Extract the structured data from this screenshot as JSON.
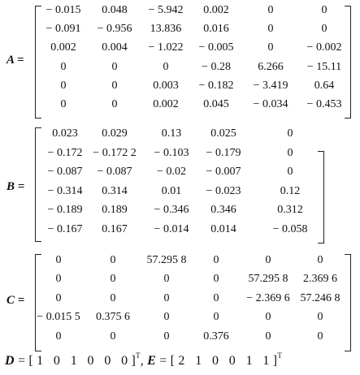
{
  "matrices": {
    "A": {
      "label": "A =",
      "rows": [
        [
          "− 0.015",
          "0.048",
          "− 5.942",
          "0.002",
          "0",
          "0"
        ],
        [
          "− 0.091",
          "− 0.956",
          "13.836",
          "0.016",
          "0",
          "0"
        ],
        [
          "0.002",
          "0.004",
          "− 1.022",
          "− 0.005",
          "0",
          "− 0.002"
        ],
        [
          "0",
          "0",
          "0",
          "− 0.28",
          "6.266",
          "− 15.11"
        ],
        [
          "0",
          "0",
          "0.003",
          "− 0.182",
          "− 3.419",
          "0.64"
        ],
        [
          "0",
          "0",
          "0.002",
          "0.045",
          "− 0.034",
          "− 0.453"
        ]
      ]
    },
    "B": {
      "label": "B =",
      "rows": [
        [
          "0.023",
          "0.029",
          "0.13",
          "0.025",
          "0"
        ],
        [
          "− 0.172",
          "− 0.172 2",
          "− 0.103",
          "− 0.179",
          "0"
        ],
        [
          "− 0.087",
          "− 0.087",
          "− 0.02",
          "− 0.007",
          "0"
        ],
        [
          "− 0.314",
          "0.314",
          "0.01",
          "− 0.023",
          "0.12"
        ],
        [
          "− 0.189",
          "0.189",
          "− 0.346",
          "0.346",
          "0.312"
        ],
        [
          "− 0.167",
          "0.167",
          "− 0.014",
          "0.014",
          "− 0.058"
        ]
      ]
    },
    "C": {
      "label": "C =",
      "rows": [
        [
          "0",
          "0",
          "57.295 8",
          "0",
          "0",
          "0"
        ],
        [
          "0",
          "0",
          "0",
          "0",
          "57.295 8",
          "2.369 6"
        ],
        [
          "0",
          "0",
          "0",
          "0",
          "− 2.369 6",
          "57.246 8"
        ],
        [
          "− 0.015 5",
          "0.375 6",
          "0",
          "0",
          "0",
          "0"
        ],
        [
          "0",
          "0",
          "0",
          "0.376",
          "0",
          "0"
        ]
      ]
    }
  },
  "footer": {
    "d_symbol": "D",
    "d_values": "= [ 1   0   1   0   0   0 ]",
    "d_sup": "T",
    "separator": ",",
    "e_symbol": "E",
    "e_values": "= [ 2   1   0   0   1   1 ]",
    "e_sup": "T"
  }
}
